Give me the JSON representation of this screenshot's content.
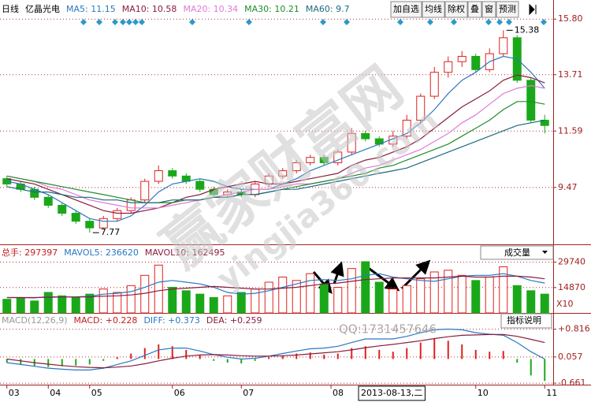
{
  "chart_data": [
    {
      "type": "candlestick",
      "period": "日线",
      "name": "亿晶光电",
      "buttons": [
        "加自选",
        "均线",
        "除权",
        "叠",
        "窗",
        "预测"
      ],
      "up_color": "#e0201e",
      "down_color": "#1aa81a",
      "open": [
        9.8,
        9.6,
        9.4,
        9.1,
        8.8,
        8.5,
        8.2,
        7.95,
        8.3,
        8.6,
        9.0,
        9.7,
        10.1,
        9.9,
        9.7,
        9.4,
        9.2,
        9.3,
        9.2,
        9.6,
        9.9,
        10.1,
        10.4,
        10.6,
        10.4,
        10.8,
        11.5,
        11.3,
        11.1,
        11.4,
        12.0,
        12.9,
        13.8,
        14.2,
        14.4,
        13.9,
        14.5,
        15.1,
        13.5,
        12.0
      ],
      "high": [
        9.9,
        9.7,
        9.5,
        9.2,
        8.9,
        8.6,
        8.3,
        8.4,
        8.7,
        9.1,
        9.8,
        10.3,
        10.2,
        10.0,
        9.8,
        9.5,
        9.4,
        9.4,
        9.7,
        10.0,
        10.2,
        10.5,
        10.7,
        10.7,
        10.9,
        11.7,
        11.6,
        11.4,
        11.6,
        12.2,
        13.0,
        14.0,
        14.4,
        14.6,
        14.5,
        14.7,
        15.38,
        15.2,
        13.6,
        12.2
      ],
      "low": [
        9.5,
        9.3,
        9.0,
        8.7,
        8.4,
        8.1,
        7.77,
        7.9,
        8.2,
        8.5,
        8.9,
        9.6,
        9.8,
        9.6,
        9.3,
        9.1,
        9.1,
        9.1,
        9.1,
        9.5,
        9.8,
        10.0,
        10.3,
        10.3,
        10.3,
        10.7,
        11.2,
        11.0,
        11.0,
        11.3,
        11.9,
        12.8,
        13.6,
        14.0,
        13.8,
        13.8,
        14.4,
        13.4,
        11.9,
        11.5
      ],
      "close": [
        9.6,
        9.4,
        9.1,
        8.8,
        8.5,
        8.2,
        7.95,
        8.3,
        8.6,
        9.0,
        9.7,
        10.1,
        9.9,
        9.7,
        9.4,
        9.2,
        9.3,
        9.2,
        9.6,
        9.9,
        10.1,
        10.4,
        10.6,
        10.4,
        10.8,
        11.5,
        11.3,
        11.1,
        11.4,
        12.0,
        12.9,
        13.8,
        14.2,
        14.4,
        13.9,
        14.5,
        15.1,
        13.5,
        12.0,
        11.8
      ],
      "series": [
        {
          "name": "MA5: 11.15",
          "color": "#2a78c0",
          "values": [
            9.7,
            9.6,
            9.4,
            9.2,
            8.9,
            8.6,
            8.3,
            8.2,
            8.2,
            8.4,
            8.8,
            9.3,
            9.6,
            9.7,
            9.8,
            9.7,
            9.5,
            9.4,
            9.4,
            9.4,
            9.6,
            9.8,
            10.1,
            10.3,
            10.5,
            10.7,
            10.9,
            11.1,
            11.3,
            11.5,
            11.9,
            12.4,
            13.0,
            13.5,
            13.8,
            14.2,
            14.4,
            14.3,
            13.8,
            13.2
          ]
        },
        {
          "name": "MA10: 10.58",
          "color": "#8a1c3c",
          "values": [
            9.8,
            9.7,
            9.6,
            9.4,
            9.2,
            9.0,
            8.8,
            8.6,
            8.5,
            8.5,
            8.6,
            8.7,
            8.9,
            9.1,
            9.2,
            9.4,
            9.5,
            9.6,
            9.7,
            9.6,
            9.6,
            9.7,
            9.8,
            9.9,
            10.0,
            10.3,
            10.5,
            10.6,
            10.8,
            11.0,
            11.3,
            11.7,
            12.1,
            12.5,
            12.8,
            13.1,
            13.5,
            13.7,
            13.6,
            13.4
          ]
        },
        {
          "name": "MA20: 10.34",
          "color": "#e07ad8",
          "values": [
            9.9,
            9.8,
            9.7,
            9.5,
            9.4,
            9.2,
            9.0,
            8.9,
            8.8,
            8.7,
            8.7,
            8.7,
            8.8,
            8.9,
            9.0,
            9.1,
            9.2,
            9.3,
            9.4,
            9.4,
            9.5,
            9.6,
            9.6,
            9.7,
            9.8,
            10.0,
            10.2,
            10.3,
            10.5,
            10.7,
            10.9,
            11.2,
            11.5,
            11.9,
            12.2,
            12.6,
            13.0,
            13.2,
            13.3,
            13.2
          ]
        },
        {
          "name": "MA30: 10.21",
          "color": "#1f8c2a",
          "values": [
            9.9,
            9.8,
            9.7,
            9.6,
            9.5,
            9.4,
            9.3,
            9.2,
            9.1,
            9.0,
            8.9,
            8.9,
            8.9,
            9.0,
            9.0,
            9.1,
            9.1,
            9.2,
            9.2,
            9.3,
            9.4,
            9.5,
            9.6,
            9.7,
            9.8,
            9.9,
            10.0,
            10.2,
            10.3,
            10.5,
            10.7,
            10.9,
            11.1,
            11.4,
            11.7,
            12.0,
            12.4,
            12.7,
            12.7,
            12.6
          ]
        },
        {
          "name": "MA60: 9.7",
          "color": "#1c6a80",
          "values": [
            9.5,
            9.4,
            9.3,
            9.3,
            9.2,
            9.1,
            9.1,
            9.0,
            9.0,
            8.9,
            8.9,
            8.9,
            9.0,
            9.0,
            9.0,
            9.1,
            9.1,
            9.2,
            9.2,
            9.3,
            9.4,
            9.4,
            9.5,
            9.6,
            9.7,
            9.8,
            9.9,
            10.0,
            10.1,
            10.2,
            10.4,
            10.6,
            10.8,
            11.0,
            11.2,
            11.4,
            11.6,
            11.8,
            11.9,
            12.0
          ]
        }
      ],
      "annotations": [
        {
          "index": 36,
          "value": 15.38,
          "label": "15.38"
        },
        {
          "index": 6,
          "value": 7.77,
          "label": "7.77"
        }
      ],
      "xlim": [
        -0.5,
        39.5
      ],
      "ylim": [
        7.39,
        16.37
      ],
      "yticks": [
        {
          "value": 15.8,
          "label": "15.80"
        },
        13.71,
        11.59,
        9.47
      ],
      "grid": true
    },
    {
      "type": "volume",
      "total": "总手: 297397",
      "indicator": "成交量",
      "values": [
        8000,
        9000,
        7000,
        12000,
        10000,
        9000,
        11000,
        14000,
        12000,
        16000,
        22000,
        28000,
        15000,
        13000,
        11000,
        9000,
        10000,
        12000,
        14000,
        18000,
        21000,
        19000,
        23000,
        17000,
        15000,
        26000,
        30000,
        18000,
        14000,
        16000,
        20000,
        24000,
        25000,
        22000,
        19000,
        21000,
        27000,
        16000,
        13000,
        11000
      ],
      "series": [
        {
          "name": "MAVOL5: 236620",
          "color": "#2a78c0",
          "values": [
            9000,
            9000,
            8800,
            9500,
            9300,
            9400,
            9800,
            11000,
            11500,
            12500,
            15000,
            18000,
            19000,
            18000,
            17000,
            15000,
            12000,
            11000,
            11500,
            13000,
            15000,
            17000,
            19000,
            19500,
            19000,
            20000,
            22000,
            23000,
            21000,
            20000,
            19000,
            18500,
            20000,
            21500,
            22000,
            22000,
            23000,
            21500,
            19000,
            17500
          ]
        },
        {
          "name": "MAVOL10: 162495",
          "color": "#8a1c3c",
          "values": [
            9000,
            9000,
            9000,
            9200,
            9300,
            9300,
            9400,
            9800,
            10000,
            10500,
            11500,
            13000,
            14000,
            14500,
            15000,
            15500,
            15000,
            14500,
            14000,
            14000,
            14500,
            15000,
            16000,
            17000,
            17500,
            18500,
            19500,
            20000,
            20500,
            20500,
            20500,
            20500,
            21000,
            21500,
            21000,
            21000,
            21500,
            21500,
            21000,
            20000
          ]
        }
      ],
      "xlim": [
        -0.5,
        39.5
      ],
      "ylim": [
        0,
        38300
      ],
      "yticks": [
        29740,
        14870
      ],
      "unit": "X10",
      "grid": true
    },
    {
      "type": "macd",
      "indicator": "MACD(12,26,9)",
      "macd_label": "MACD: +0.228",
      "button": "指标说明",
      "pos_color": "#e0201e",
      "neg_color": "#1aa81a",
      "values": [
        -0.1,
        -0.15,
        -0.2,
        -0.22,
        -0.2,
        -0.18,
        -0.15,
        -0.05,
        0.05,
        0.15,
        0.3,
        0.4,
        0.35,
        0.25,
        0.1,
        -0.05,
        -0.1,
        -0.12,
        -0.05,
        0.05,
        0.1,
        0.15,
        0.18,
        0.12,
        0.15,
        0.3,
        0.35,
        0.25,
        0.2,
        0.3,
        0.45,
        0.55,
        0.5,
        0.4,
        0.25,
        0.2,
        0.22,
        -0.1,
        -0.45,
        -0.6
      ],
      "series": [
        {
          "name": "DIFF: +0.373",
          "color": "#2a78c0",
          "values": [
            -0.1,
            -0.15,
            -0.2,
            -0.25,
            -0.28,
            -0.3,
            -0.3,
            -0.25,
            -0.15,
            -0.05,
            0.1,
            0.25,
            0.3,
            0.3,
            0.22,
            0.12,
            0.05,
            0,
            0.02,
            0.08,
            0.15,
            0.22,
            0.28,
            0.3,
            0.35,
            0.45,
            0.55,
            0.55,
            0.55,
            0.62,
            0.72,
            0.8,
            0.82,
            0.8,
            0.72,
            0.68,
            0.65,
            0.45,
            0.2,
            0.0
          ]
        },
        {
          "name": "DEA: +0.259",
          "color": "#8a1c3c",
          "values": [
            0,
            -0.05,
            -0.1,
            -0.14,
            -0.18,
            -0.21,
            -0.23,
            -0.24,
            -0.22,
            -0.19,
            -0.13,
            -0.05,
            0.02,
            0.08,
            0.11,
            0.12,
            0.11,
            0.09,
            0.08,
            0.08,
            0.09,
            0.11,
            0.14,
            0.17,
            0.2,
            0.25,
            0.31,
            0.36,
            0.4,
            0.45,
            0.5,
            0.56,
            0.61,
            0.65,
            0.66,
            0.67,
            0.67,
            0.62,
            0.54,
            0.45
          ]
        }
      ],
      "xlim": [
        -0.5,
        39.5
      ],
      "ylim": [
        -0.702,
        1.154
      ],
      "yticks": [
        {
          "value": 0.816,
          "label": "+0.816"
        },
        0.057,
        -0.661
      ],
      "grid": true,
      "xticks": [
        {
          "value": 0,
          "label": "03"
        },
        {
          "value": 3,
          "label": "04"
        },
        {
          "value": 6,
          "label": "05"
        },
        {
          "value": 12,
          "label": "06"
        },
        {
          "value": 17,
          "label": "07"
        },
        {
          "value": 23.5,
          "label": "08"
        },
        {
          "value": 34,
          "label": "10"
        },
        {
          "value": 39,
          "label": "11"
        }
      ],
      "cursor_label": "2013-08-13,二"
    }
  ],
  "watermark": {
    "brand": "赢家财富网",
    "site": "yingjia360.com",
    "qq": "QQ:1731457646"
  }
}
